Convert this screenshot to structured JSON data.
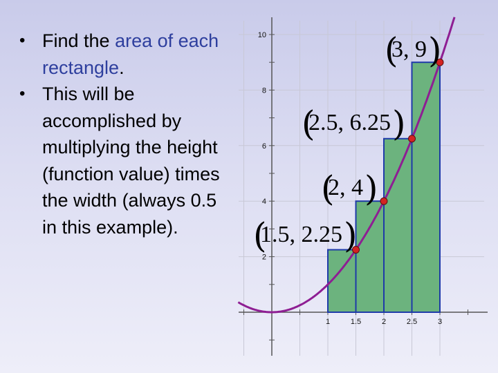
{
  "slide": {
    "bullets": [
      {
        "text_before": "Find the ",
        "highlight": "area of each rectangle",
        "text_after": "."
      },
      {
        "text": "This will be accomplished by multiplying the height (function value) times the width (always 0.5 in this example)."
      }
    ]
  },
  "graph": {
    "function": "y = x^2",
    "x_ticks": [
      "1",
      "1.5",
      "2",
      "2.5",
      "3"
    ],
    "y_ticks": [
      "2",
      "4",
      "6",
      "8",
      "10"
    ],
    "colors": {
      "curve": "#8e1e93",
      "rect_fill": "#6cb37e",
      "rect_stroke": "#1e3aa8",
      "point": "#d42323"
    },
    "rectangles": [
      {
        "left": 1,
        "right": 1.5,
        "height": 2.25
      },
      {
        "left": 1.5,
        "right": 2,
        "height": 4
      },
      {
        "left": 2,
        "right": 2.5,
        "height": 6.25
      },
      {
        "left": 2.5,
        "right": 3,
        "height": 9
      }
    ],
    "points": [
      {
        "x": 1.5,
        "y": 2.25,
        "label": "1.5, 2.25"
      },
      {
        "x": 2,
        "y": 4,
        "label": "2, 4"
      },
      {
        "x": 2.5,
        "y": 6.25,
        "label": "2.5, 6.25"
      },
      {
        "x": 3,
        "y": 9,
        "label": "3, 9"
      }
    ]
  }
}
